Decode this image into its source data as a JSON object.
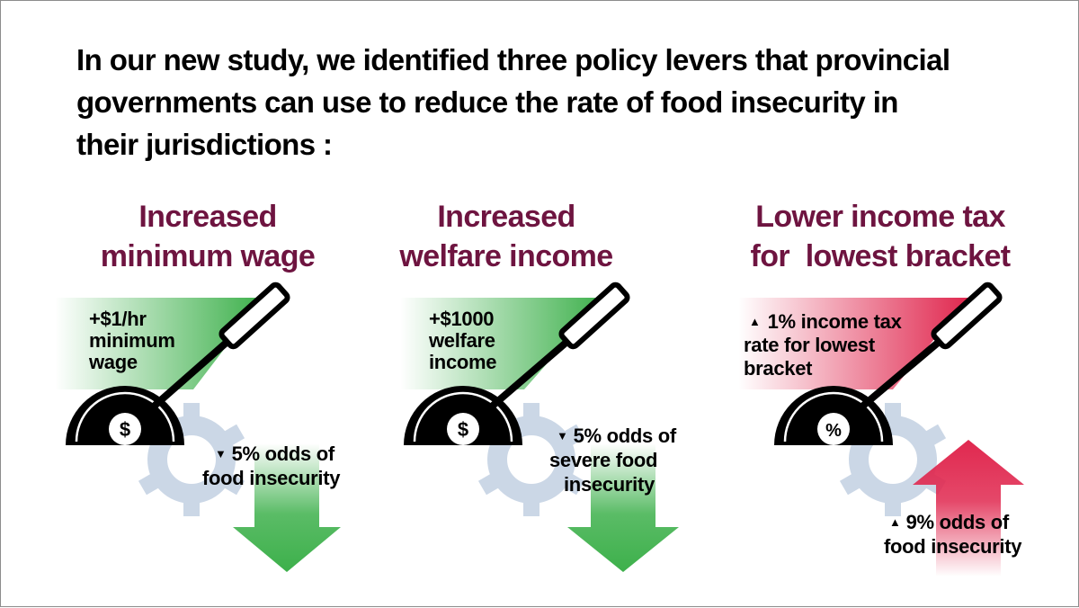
{
  "headline": {
    "line1": "In our new study, we identified three policy levers that provincial",
    "line2": "governments can use to reduce the rate of food insecurity in",
    "line3": "their jurisdictions :"
  },
  "colors": {
    "title": "#6e1440",
    "green": "#3db04b",
    "red": "#e0284f",
    "gear": "#cbd7e6",
    "dial": "#000000"
  },
  "levers": [
    {
      "title_lines": [
        "Increased",
        "minimum wage"
      ],
      "lever_lines": [
        "+$1/hr",
        "minimum",
        "wage"
      ],
      "dial_symbol": "$",
      "effect_arrow_icon": "triangle-down-icon",
      "effect_lines": [
        "5% odds of",
        "food insecurity"
      ],
      "direction": "down",
      "theme": "green"
    },
    {
      "title_lines": [
        "Increased",
        "welfare income"
      ],
      "lever_lines": [
        "+$1000",
        "welfare",
        "income"
      ],
      "dial_symbol": "$",
      "effect_arrow_icon": "triangle-down-icon",
      "effect_lines": [
        "5% odds of",
        "severe food",
        "insecurity"
      ],
      "direction": "down",
      "theme": "green"
    },
    {
      "title_lines": [
        "Lower income tax",
        "for  lowest bracket"
      ],
      "lever_lines": [
        "1% income tax",
        "rate for lowest",
        "bracket"
      ],
      "lever_arrow_icon": "triangle-up-icon",
      "dial_symbol": "%",
      "effect_arrow_icon": "triangle-up-icon",
      "effect_lines": [
        "9% odds of",
        "food insecurity"
      ],
      "direction": "up",
      "theme": "red"
    }
  ]
}
